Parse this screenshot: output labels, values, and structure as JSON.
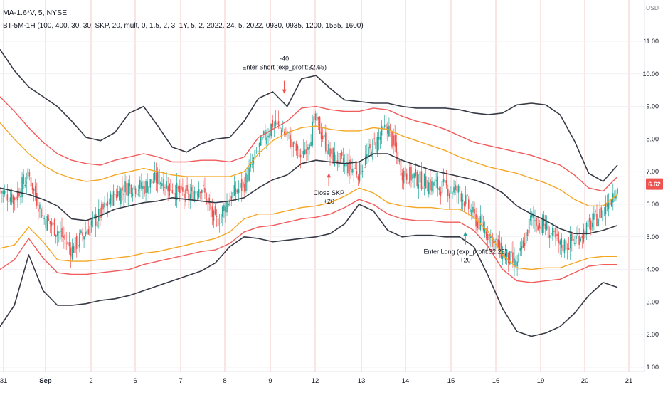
{
  "header": {
    "symbol_line": "MA-1.6*V, 5, NYSE",
    "study_line": "BT-5M-1H (100, 400, 30, 30, SKP, 20, mult, 0, 1.5, 2, 3, 1Y, 5, 2, 2022, 24, 5, 2022, 0930, 0935, 1200, 1555, 1600)"
  },
  "colors": {
    "background": "#ffffff",
    "grid_vertical": "#f6c8c8",
    "grid_horizontal": "#f0f1f4",
    "band_outer": "#363a45",
    "band_red": "#f15b5b",
    "band_orange": "#f5a623",
    "candle_up": "#26a69a",
    "candle_down": "#ef5350",
    "price_tag": "#ef5350",
    "crosshair": "#f5a3a3"
  },
  "chart_data": {
    "type": "line",
    "title": "",
    "currency": "USD",
    "y_ticks": [
      1.0,
      2.0,
      3.0,
      4.0,
      5.0,
      6.0,
      7.0,
      8.0,
      9.0,
      10.0,
      11.0
    ],
    "ylim": [
      0.8,
      12.0
    ],
    "x_labels": [
      "31",
      "Sep",
      "2",
      "6",
      "7",
      "8",
      "9",
      "12",
      "13",
      "14",
      "15",
      "16",
      "19",
      "20",
      "21"
    ],
    "last_price": 6.62,
    "last_price_label": "6.62",
    "series": [
      {
        "role": "outer-upper",
        "color_key": "band_outer",
        "values": [
          10.75,
          10.1,
          9.6,
          9.3,
          9.0,
          8.55,
          8.05,
          7.95,
          8.2,
          8.8,
          9.0,
          8.4,
          7.75,
          7.6,
          7.85,
          8.0,
          8.05,
          8.55,
          9.25,
          9.45,
          9.0,
          9.85,
          9.95,
          9.55,
          9.2,
          9.15,
          9.1,
          9.1,
          9.0,
          8.95,
          8.95,
          8.95,
          8.9,
          8.8,
          8.75,
          8.8,
          9.05,
          9.1,
          9.05,
          8.75,
          7.95,
          6.95,
          6.7,
          7.2
        ]
      },
      {
        "role": "red-upper",
        "color_key": "band_red",
        "values": [
          9.3,
          8.85,
          8.35,
          7.9,
          7.55,
          7.35,
          7.25,
          7.2,
          7.35,
          7.45,
          7.55,
          7.45,
          7.3,
          7.3,
          7.35,
          7.35,
          7.3,
          7.45,
          8.05,
          8.3,
          8.55,
          8.95,
          9.0,
          8.9,
          8.85,
          8.85,
          8.95,
          8.9,
          8.7,
          8.55,
          8.45,
          8.3,
          8.1,
          7.9,
          7.8,
          7.7,
          7.6,
          7.5,
          7.35,
          7.2,
          6.9,
          6.5,
          6.4,
          6.85
        ]
      },
      {
        "role": "orange-upper",
        "color_key": "band_orange",
        "values": [
          8.5,
          8.0,
          7.55,
          7.2,
          6.95,
          6.8,
          6.7,
          6.75,
          6.9,
          7.0,
          7.1,
          7.0,
          6.9,
          6.85,
          6.85,
          6.85,
          6.85,
          7.0,
          7.55,
          7.95,
          8.2,
          8.35,
          8.4,
          8.3,
          8.25,
          8.25,
          8.35,
          8.3,
          8.1,
          7.95,
          7.8,
          7.65,
          7.45,
          7.3,
          7.15,
          7.05,
          6.95,
          6.8,
          6.65,
          6.45,
          6.15,
          5.95,
          5.95,
          6.3
        ]
      },
      {
        "role": "middle",
        "color_key": "band_outer",
        "values": [
          6.5,
          6.4,
          6.3,
          6.15,
          5.95,
          5.55,
          5.5,
          5.65,
          5.85,
          5.95,
          6.05,
          6.1,
          6.2,
          6.15,
          6.1,
          6.05,
          6.1,
          6.2,
          6.5,
          6.75,
          6.9,
          7.25,
          7.35,
          7.3,
          7.25,
          7.3,
          7.55,
          7.55,
          7.35,
          7.2,
          7.05,
          6.95,
          6.85,
          6.75,
          6.6,
          6.35,
          5.95,
          5.7,
          5.5,
          5.25,
          5.1,
          5.1,
          5.2,
          5.35
        ]
      },
      {
        "role": "orange-lower",
        "color_key": "band_orange",
        "values": [
          4.65,
          4.75,
          5.3,
          4.85,
          4.3,
          4.25,
          4.25,
          4.3,
          4.35,
          4.4,
          4.5,
          4.55,
          4.65,
          4.75,
          4.85,
          4.95,
          5.15,
          5.55,
          5.7,
          5.7,
          5.8,
          5.9,
          5.95,
          6.05,
          6.25,
          6.5,
          6.35,
          6.05,
          5.95,
          5.9,
          5.9,
          5.85,
          5.85,
          5.6,
          5.15,
          4.45,
          4.05,
          4.0,
          4.05,
          4.05,
          4.2,
          4.35,
          4.4,
          4.4
        ]
      },
      {
        "role": "red-lower",
        "color_key": "band_red",
        "values": [
          4.0,
          4.3,
          4.95,
          4.35,
          3.9,
          3.85,
          3.85,
          3.9,
          3.95,
          4.0,
          4.15,
          4.25,
          4.35,
          4.45,
          4.55,
          4.6,
          4.8,
          5.15,
          5.3,
          5.35,
          5.45,
          5.55,
          5.6,
          5.7,
          5.9,
          6.15,
          6.0,
          5.7,
          5.55,
          5.5,
          5.5,
          5.45,
          5.45,
          5.2,
          4.7,
          4.0,
          3.65,
          3.6,
          3.65,
          3.7,
          3.9,
          4.1,
          4.15,
          4.15
        ]
      },
      {
        "role": "outer-lower",
        "color_key": "band_outer",
        "values": [
          2.25,
          2.9,
          4.45,
          3.35,
          2.9,
          2.9,
          2.95,
          3.05,
          3.1,
          3.2,
          3.35,
          3.5,
          3.65,
          3.8,
          3.95,
          4.2,
          4.7,
          5.0,
          4.95,
          4.85,
          4.9,
          4.95,
          5.0,
          5.1,
          5.4,
          6.0,
          5.8,
          5.2,
          5.0,
          5.05,
          5.05,
          5.0,
          5.0,
          4.7,
          3.8,
          2.8,
          2.1,
          1.95,
          2.05,
          2.25,
          2.65,
          3.2,
          3.6,
          3.45
        ]
      }
    ],
    "price_path": [
      6.4,
      6.2,
      6.9,
      5.6,
      5.2,
      4.6,
      5.2,
      5.7,
      6.3,
      6.6,
      6.5,
      6.8,
      6.5,
      6.2,
      6.6,
      5.4,
      6.2,
      6.6,
      7.7,
      8.5,
      8.1,
      7.4,
      8.6,
      7.5,
      7.2,
      7.0,
      7.8,
      8.4,
      7.0,
      6.8,
      6.6,
      6.5,
      6.4,
      5.6,
      5.1,
      4.5,
      4.1,
      5.6,
      5.3,
      4.7,
      4.9,
      5.3,
      5.8,
      6.62
    ],
    "annotations": [
      {
        "label": "Enter Short (exp_profit:32.65)",
        "sub": "-40",
        "x_index": 19.8,
        "price": 9.35,
        "direction": "down",
        "color": "#ef5350"
      },
      {
        "label": "Close SKP",
        "sub": "+20",
        "x_index": 22.9,
        "price": 7.0,
        "direction": "up",
        "color": "#ef5350"
      },
      {
        "label": "Enter Long (exp_profit:32.25)",
        "sub": "+20",
        "x_index": 32.4,
        "price": 5.2,
        "direction": "up",
        "color": "#26a69a"
      }
    ]
  }
}
